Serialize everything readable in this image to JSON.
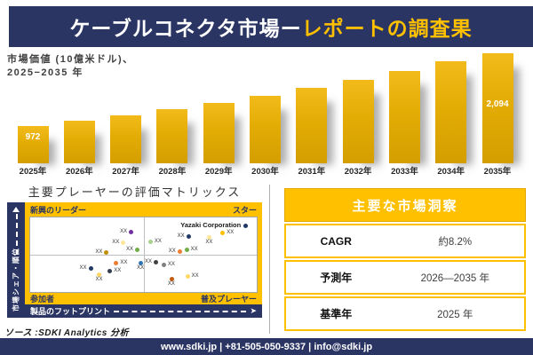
{
  "header": {
    "title_white": "ケーブルコネクタ市場ー",
    "title_gold": "レポートの調査果"
  },
  "chart": {
    "label_line1": "市場価値 (10億米ドル)、",
    "label_line2": "2025−2035 年"
  },
  "chart_data": [
    {
      "type": "bar",
      "title": "市場価値 (10億米ドル)、2025−2035 年",
      "categories": [
        "2025年",
        "2026年",
        "2027年",
        "2028年",
        "2029年",
        "2030年",
        "2031年",
        "2032年",
        "2033年",
        "2034年",
        "2035年"
      ],
      "values": [
        972,
        1052,
        1138,
        1231,
        1332,
        1441,
        1559,
        1687,
        1825,
        1975,
        2094
      ],
      "data_labels": {
        "0": "972",
        "10": "2,094"
      },
      "bar_color": "#E3AC05",
      "xlabel": "",
      "ylabel": "市場価値 (10億米ドル)",
      "grid": false
    },
    {
      "type": "scatter",
      "title": "主要プレーヤーの評価マトリックス",
      "xlabel": "製品のフットプリント",
      "ylabel": "市場シェア・順位",
      "points": [
        {
          "x": 43.6,
          "y": 16.7,
          "color": "#7030A0",
          "label": "XX",
          "pos": "left"
        },
        {
          "x": 40.1,
          "y": 31.0,
          "color": "#FFE699",
          "label": "XX",
          "pos": "left"
        },
        {
          "x": 32.7,
          "y": 44.0,
          "color": "#BF9000",
          "label": "XX",
          "pos": "left"
        },
        {
          "x": 46.3,
          "y": 40.5,
          "color": "#70AD47",
          "label": "XX",
          "pos": "left"
        },
        {
          "x": 52.1,
          "y": 29.8,
          "color": "#A9D18E",
          "label": "XX",
          "pos": "right"
        },
        {
          "x": 68.9,
          "y": 22.6,
          "color": "#1F3864",
          "label": "XX",
          "pos": "left"
        },
        {
          "x": 78.2,
          "y": 23.8,
          "color": "#FFE699",
          "label": "XX",
          "pos": "below"
        },
        {
          "x": 84.0,
          "y": 17.9,
          "color": "#FFC000",
          "label": "XX",
          "pos": "right"
        },
        {
          "x": 94.2,
          "y": 8.3,
          "color": "#1F3864",
          "label": "Yazaki Corporation",
          "pos": "left",
          "emph": true
        },
        {
          "x": 65.0,
          "y": 42.9,
          "color": "#ED7D31",
          "label": "XX",
          "pos": "left"
        },
        {
          "x": 68.1,
          "y": 40.5,
          "color": "#70AD47",
          "label": "XX",
          "pos": "right"
        },
        {
          "x": 37.0,
          "y": 58.3,
          "color": "#ED7D31",
          "label": "XX",
          "pos": "right"
        },
        {
          "x": 47.9,
          "y": 58.3,
          "color": "#2E75B6",
          "label": "XX",
          "pos": "below"
        },
        {
          "x": 25.7,
          "y": 65.5,
          "color": "#1F3864",
          "label": "XX",
          "pos": "left"
        },
        {
          "x": 34.2,
          "y": 69.0,
          "color": "#333F50",
          "label": "XX",
          "pos": "right"
        },
        {
          "x": 29.6,
          "y": 73.8,
          "color": "#FFD966",
          "label": "XX",
          "pos": "below"
        },
        {
          "x": 54.5,
          "y": 57.1,
          "color": "#404040",
          "label": "XX",
          "pos": "left"
        },
        {
          "x": 58.0,
          "y": 60.7,
          "color": "#7F7F7F",
          "label": "XX",
          "pos": "right"
        },
        {
          "x": 61.5,
          "y": 79.8,
          "color": "#C55A11",
          "label": "XX",
          "pos": "below"
        },
        {
          "x": 68.5,
          "y": 76.2,
          "color": "#FFD966",
          "label": "XX",
          "pos": "right"
        }
      ]
    }
  ],
  "matrix": {
    "title": "主要プレーヤーの評価マトリックス",
    "y_axis_label": "市場シェア・順位",
    "x_axis_label": "製品のフットプリント",
    "x_axis_arrow": "➤",
    "quadrant_top_left": "新興のリーダー",
    "quadrant_top_right": "スター",
    "quadrant_bottom_left": "参加者",
    "quadrant_bottom_right": "普及プレーヤー",
    "highlight_company": "Yazaki Corporation"
  },
  "insights": {
    "title": "主要な市場洞察",
    "rows": [
      {
        "label": "CAGR",
        "value": "約8.2%"
      },
      {
        "label": "予測年",
        "value": "2026—2035 年"
      },
      {
        "label": "基準年",
        "value": "2025 年"
      }
    ]
  },
  "source": "ソース :SDKI Analytics 分析",
  "footer": "www.sdki.jp | +81-505-050-9337 | info@sdki.jp",
  "colors": {
    "navy": "#2A3564",
    "gold": "#FFC000",
    "bar_top": "#F2BB1A",
    "bar_bottom": "#D49E00"
  }
}
